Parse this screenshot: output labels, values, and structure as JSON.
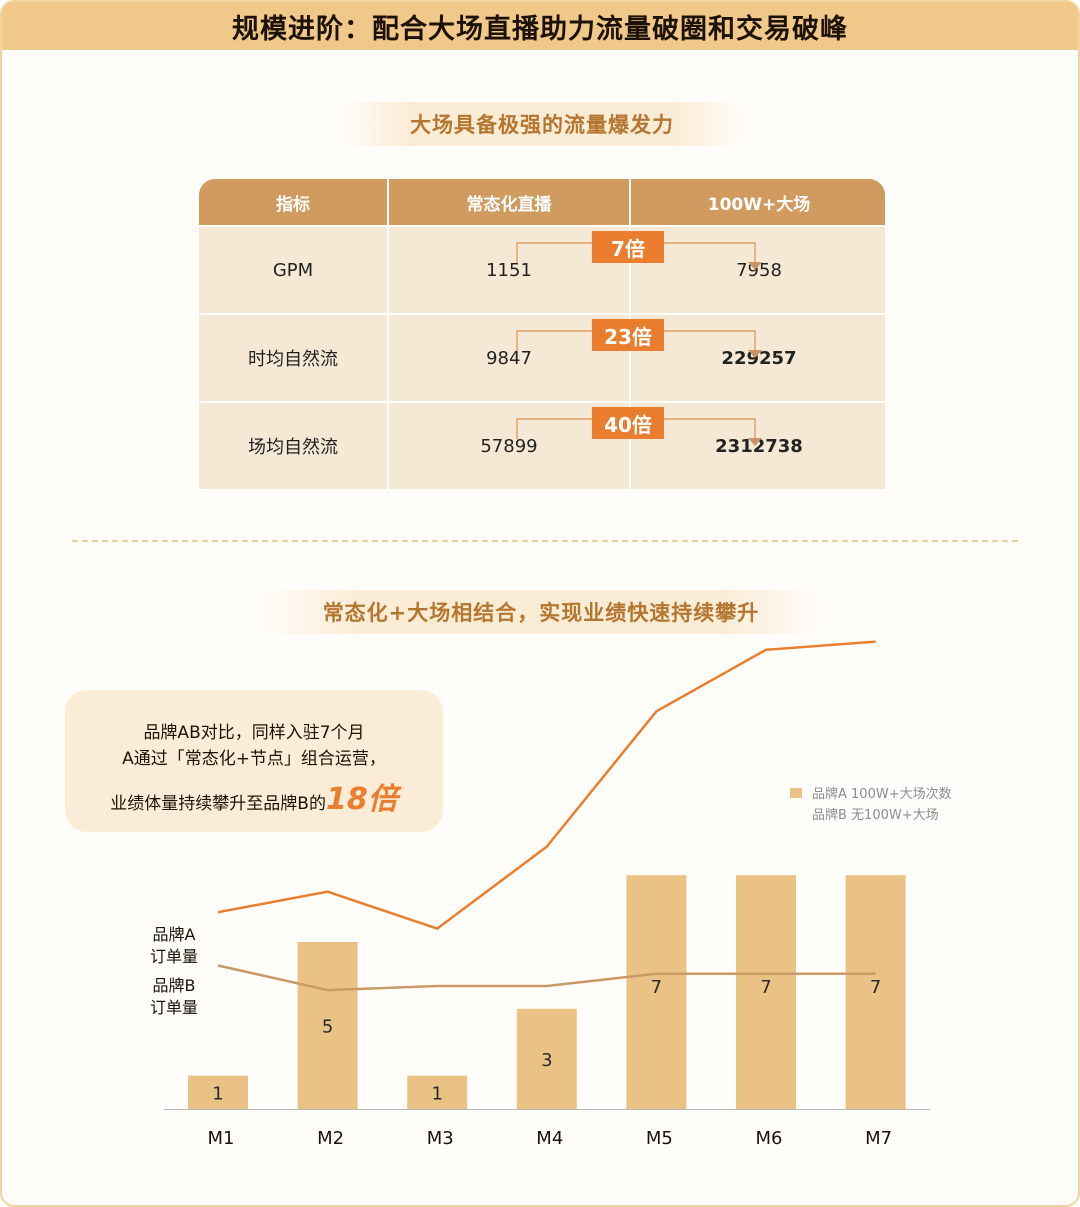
{
  "header": {
    "title": "规模进阶：配合大场直播助力流量破圈和交易破峰"
  },
  "section1": {
    "pill": "大场具备极强的流量爆发力",
    "table": {
      "headers": [
        "指标",
        "常态化直播",
        "100W+大场"
      ],
      "rows": [
        {
          "metric": "GPM",
          "normal": "1151",
          "big": "7958",
          "multiple": "7倍"
        },
        {
          "metric": "时均自然流",
          "normal": "9847",
          "big": "229257",
          "multiple": "23倍"
        },
        {
          "metric": "场均自然流",
          "normal": "57899",
          "big": "2312738",
          "multiple": "40倍"
        }
      ]
    }
  },
  "section2": {
    "pill": "常态化+大场相结合，实现业绩快速持续攀升",
    "note": {
      "line1": "品牌AB对比，同样入驻7个月",
      "line2": "A通过「常态化+节点」组合运营，",
      "line3": "业绩体量持续攀升至品牌B的",
      "highlight": "18倍"
    },
    "legend": {
      "a": "品牌A 100W+大场次数",
      "b": "品牌B 无100W+大场"
    },
    "ylabel_a": [
      "品牌A",
      "订单量"
    ],
    "ylabel_b": [
      "品牌B",
      "订单量"
    ]
  },
  "colors": {
    "accent": "#ea7e2e",
    "bar": "#ebc285",
    "header": "#f0c889",
    "lineB": "#c99a67"
  },
  "chart_data": {
    "type": "bar",
    "categories": [
      "M1",
      "M2",
      "M3",
      "M4",
      "M5",
      "M6",
      "M7"
    ],
    "series": [
      {
        "name": "品牌A 100W+大场次数",
        "kind": "bar",
        "values": [
          1,
          5,
          1,
          3,
          7,
          7,
          7
        ]
      },
      {
        "name": "品牌A 订单量",
        "kind": "line",
        "values": [
          0.48,
          0.53,
          0.44,
          0.64,
          0.97,
          1.12,
          1.14
        ]
      },
      {
        "name": "品牌B 订单量",
        "kind": "line",
        "values": [
          0.35,
          0.29,
          0.3,
          0.3,
          0.33,
          0.33,
          0.33
        ]
      }
    ],
    "ylim": [
      0,
      7
    ]
  }
}
